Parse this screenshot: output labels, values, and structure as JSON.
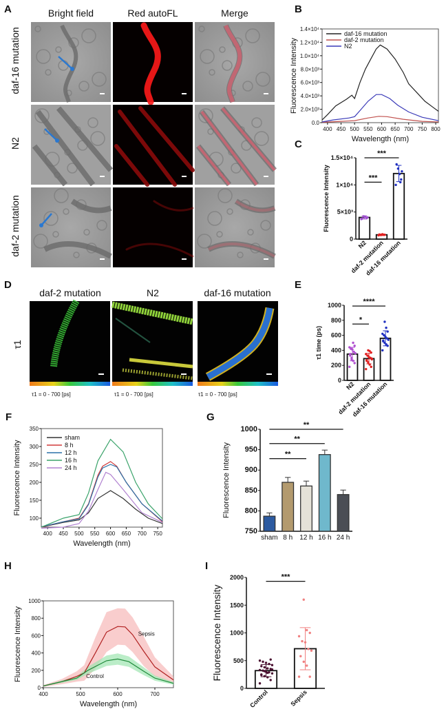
{
  "panel_labels": [
    "A",
    "B",
    "C",
    "D",
    "E",
    "F",
    "G",
    "H",
    "I"
  ],
  "panel_a": {
    "columns": [
      "Bright field",
      "Red autoFL",
      "Merge"
    ],
    "rows": [
      "daf-16 mutation",
      "N2",
      "daf-2 mutation"
    ]
  },
  "panel_d": {
    "columns": [
      "daf-2 mutation",
      "N2",
      "daf-16 mutation"
    ],
    "row_label": "τ1",
    "scale_caption": "τ1 = 0 - 700 [ps]",
    "colorbar": [
      "#f07a1a",
      "#e8d21a",
      "#38c83a",
      "#1ec0c8",
      "#1a5ae0"
    ]
  },
  "chart_data": [
    {
      "id": "B",
      "type": "line",
      "xlabel": "Wavelength (nm)",
      "ylabel": "Fluorescence Intensity",
      "xlim": [
        380,
        810
      ],
      "ylim": [
        0,
        14000
      ],
      "xticks": [
        400,
        450,
        500,
        550,
        600,
        650,
        700,
        750,
        800
      ],
      "yticks": [
        0,
        2000,
        4000,
        6000,
        8000,
        10000,
        12000,
        14000
      ],
      "ytick_labels": [
        "0.0",
        "2.0×10³",
        "4.0×10³",
        "6.0×10³",
        "8.0×10³",
        "1.0×10⁴",
        "1.2×10⁴",
        "1.4×10⁴"
      ],
      "legend": "top-left",
      "series": [
        {
          "name": "daf-16 mutation",
          "color": "#222222",
          "x": [
            380,
            400,
            430,
            470,
            490,
            500,
            520,
            540,
            560,
            580,
            595,
            620,
            650,
            680,
            700,
            730,
            760,
            790,
            810
          ],
          "y": [
            400,
            1200,
            2500,
            3500,
            4100,
            3600,
            6000,
            8000,
            9500,
            11000,
            11600,
            11000,
            9500,
            7500,
            5800,
            4500,
            3200,
            2300,
            1700
          ]
        },
        {
          "name": "daf-2 mutation",
          "color": "#c0504d",
          "x": [
            380,
            450,
            500,
            550,
            590,
            620,
            680,
            750,
            810
          ],
          "y": [
            50,
            200,
            300,
            700,
            950,
            900,
            500,
            200,
            100
          ]
        },
        {
          "name": "N2",
          "color": "#3a3ab8",
          "x": [
            380,
            420,
            480,
            500,
            520,
            550,
            580,
            600,
            630,
            660,
            700,
            750,
            810
          ],
          "y": [
            100,
            400,
            700,
            900,
            1800,
            3200,
            4200,
            4200,
            3600,
            2600,
            1600,
            800,
            300
          ]
        }
      ]
    },
    {
      "id": "C",
      "type": "bar",
      "ylabel": "Fluorescence Intensity",
      "ylim": [
        0,
        15000
      ],
      "yticks": [
        0,
        5000,
        10000,
        15000
      ],
      "ytick_labels": [
        "0",
        "5×10³",
        "1×10⁴",
        "1.5×10⁴"
      ],
      "categories": [
        "N2",
        "daf-2 mutation",
        "daf-16 mutation"
      ],
      "values": [
        4000,
        800,
        12100
      ],
      "errors": [
        300,
        150,
        1500
      ],
      "point_colors": [
        "#a050d0",
        "#e02020",
        "#2030c0"
      ],
      "points": [
        [
          3700,
          3900,
          4100,
          4200,
          3800,
          4000
        ],
        [
          700,
          800,
          900,
          750,
          850,
          800
        ],
        [
          10000,
          11000,
          12000,
          13000,
          13800,
          12500,
          10500
        ]
      ],
      "significance": [
        {
          "from": 0,
          "to": 1,
          "label": "***",
          "y": 10500
        },
        {
          "from": 0,
          "to": 2,
          "label": "***",
          "y": 15000
        }
      ]
    },
    {
      "id": "E",
      "type": "bar",
      "ylabel": "τ1 time (ps)",
      "ylim": [
        0,
        1000
      ],
      "yticks": [
        0,
        200,
        400,
        600,
        800,
        1000
      ],
      "categories": [
        "N2",
        "daf-2 mutation",
        "daf-16 mutation"
      ],
      "values": [
        350,
        290,
        560
      ],
      "errors": [
        90,
        70,
        100
      ],
      "point_colors": [
        "#b050d0",
        "#e02020",
        "#2030c0"
      ],
      "points": [
        [
          180,
          230,
          260,
          300,
          330,
          360,
          380,
          410,
          420,
          440,
          460,
          500,
          280,
          350
        ],
        [
          150,
          180,
          210,
          240,
          260,
          280,
          300,
          310,
          330,
          350,
          370,
          390,
          400,
          270,
          290
        ],
        [
          400,
          460,
          480,
          500,
          520,
          540,
          560,
          580,
          600,
          620,
          650,
          700,
          780,
          530
        ]
      ],
      "significance": [
        {
          "from": 0,
          "to": 1,
          "label": "*",
          "y": 750
        },
        {
          "from": 0,
          "to": 2,
          "label": "****",
          "y": 990
        }
      ]
    },
    {
      "id": "F",
      "type": "line",
      "xlabel": "Wavelength (nm)",
      "ylabel": "Fluorescence Intensity",
      "xlim": [
        380,
        765
      ],
      "ylim": [
        75,
        350
      ],
      "xticks": [
        400,
        450,
        500,
        550,
        600,
        650,
        700,
        750
      ],
      "yticks": [
        100,
        150,
        200,
        250,
        300,
        350
      ],
      "legend": "top-left",
      "series": [
        {
          "name": "sham",
          "color": "#333333",
          "x": [
            380,
            450,
            500,
            530,
            560,
            600,
            640,
            680,
            720,
            765
          ],
          "y": [
            75,
            88,
            95,
            115,
            155,
            177,
            155,
            125,
            100,
            85
          ]
        },
        {
          "name": "8 h",
          "color": "#d03a3a",
          "x": [
            380,
            450,
            500,
            530,
            560,
            575,
            600,
            620,
            650,
            700,
            765
          ],
          "y": [
            75,
            90,
            100,
            140,
            220,
            245,
            258,
            245,
            200,
            140,
            90
          ]
        },
        {
          "name": "12 h",
          "color": "#2a70a8",
          "x": [
            380,
            450,
            500,
            530,
            560,
            575,
            600,
            620,
            650,
            700,
            765
          ],
          "y": [
            76,
            90,
            98,
            138,
            215,
            240,
            250,
            243,
            200,
            140,
            92
          ]
        },
        {
          "name": "16 h",
          "color": "#3aa36a",
          "x": [
            380,
            450,
            500,
            530,
            560,
            600,
            640,
            680,
            720,
            765
          ],
          "y": [
            75,
            100,
            110,
            170,
            260,
            320,
            285,
            200,
            140,
            98
          ]
        },
        {
          "name": "24 h",
          "color": "#b080d0",
          "x": [
            380,
            450,
            500,
            530,
            560,
            585,
            600,
            640,
            700,
            765
          ],
          "y": [
            72,
            75,
            85,
            120,
            180,
            228,
            222,
            180,
            115,
            88
          ]
        }
      ]
    },
    {
      "id": "G",
      "type": "bar",
      "ylabel": "Fluorescence Intensity",
      "ylim": [
        750,
        1000
      ],
      "yticks": [
        750,
        800,
        850,
        900,
        950,
        1000
      ],
      "categories": [
        "sham",
        "8 h",
        "12 h",
        "16 h",
        "24 h"
      ],
      "values": [
        787,
        870,
        861,
        938,
        840
      ],
      "errors": [
        8,
        12,
        12,
        11,
        11
      ],
      "colors": [
        "#2c5aa0",
        "#b39a6e",
        "#e5e2d8",
        "#6fb8cc",
        "#4b4e55"
      ],
      "significance": [
        {
          "from": 0,
          "to": 2,
          "label": "**",
          "y": 928
        },
        {
          "from": 0,
          "to": 3,
          "label": "**",
          "y": 965
        },
        {
          "from": 0,
          "to": 4,
          "label": "**",
          "y": 1000
        }
      ]
    },
    {
      "id": "H",
      "type": "area",
      "xlabel": "Wavelength (nm)",
      "ylabel": "Fluorescence Intensity",
      "xlim": [
        400,
        750
      ],
      "ylim": [
        0,
        1000
      ],
      "xticks": [
        400,
        500,
        600,
        700
      ],
      "yticks": [
        0,
        200,
        400,
        600,
        800,
        1000
      ],
      "series": [
        {
          "name": "Sepsis",
          "color": "#b02020",
          "band_color": "#f7b8b8",
          "x": [
            400,
            450,
            490,
            510,
            540,
            570,
            600,
            620,
            640,
            670,
            700,
            750
          ],
          "y": [
            20,
            70,
            130,
            170,
            400,
            640,
            705,
            700,
            610,
            420,
            240,
            90
          ],
          "band": [
            10,
            30,
            60,
            90,
            180,
            230,
            210,
            210,
            200,
            170,
            110,
            40
          ]
        },
        {
          "name": "Control",
          "color": "#1f8a3a",
          "band_color": "#9ee6b0",
          "x": [
            400,
            490,
            520,
            570,
            600,
            630,
            670,
            700,
            750
          ],
          "y": [
            20,
            110,
            200,
            310,
            330,
            300,
            190,
            110,
            50
          ],
          "band": [
            5,
            20,
            40,
            60,
            65,
            60,
            45,
            30,
            15
          ]
        }
      ]
    },
    {
      "id": "I",
      "type": "bar",
      "ylabel": "Fluorescence Intensity",
      "ylim": [
        0,
        2000
      ],
      "yticks": [
        0,
        500,
        1000,
        1500,
        2000
      ],
      "categories": [
        "Control",
        "Sepsis"
      ],
      "values": [
        320,
        715
      ],
      "errors": [
        110,
        380
      ],
      "point_colors": [
        "#4a1030",
        "#f08080"
      ],
      "points": [
        [
          90,
          150,
          200,
          220,
          250,
          270,
          290,
          300,
          320,
          330,
          350,
          360,
          380,
          400,
          420,
          440,
          460,
          480,
          500,
          520,
          280,
          310,
          240,
          340
        ],
        [
          210,
          210,
          410,
          480,
          580,
          680,
          710,
          830,
          850,
          940,
          1000,
          1050,
          1600
        ]
      ],
      "significance": [
        {
          "from": 0,
          "to": 1,
          "label": "***",
          "y": 1930
        }
      ]
    }
  ]
}
